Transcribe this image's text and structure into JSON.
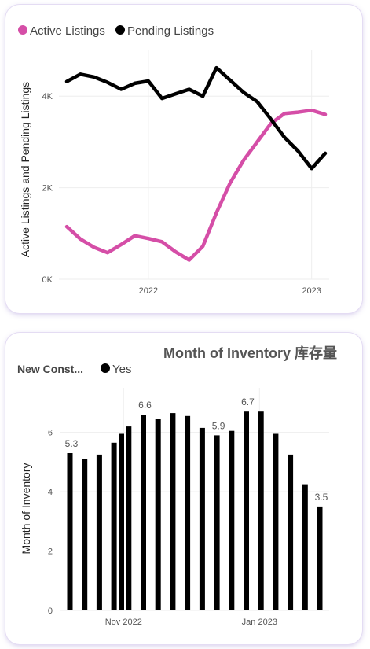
{
  "chart_data": [
    {
      "type": "line",
      "title": "",
      "xlabel": "",
      "ylabel": "Active Listings and Pending Listings",
      "x_ticks": [
        "2022",
        "2023"
      ],
      "y_ticks": [
        "0K",
        "2K",
        "4K"
      ],
      "ylim": [
        0,
        5000
      ],
      "grid": true,
      "legend_position": "top-left",
      "x": [
        "2021-07",
        "2021-08",
        "2021-09",
        "2021-10",
        "2021-11",
        "2021-12",
        "2022-01",
        "2022-02",
        "2022-03",
        "2022-04",
        "2022-05",
        "2022-06",
        "2022-07",
        "2022-08",
        "2022-09",
        "2022-10",
        "2022-11",
        "2022-12",
        "2023-01",
        "2023-02"
      ],
      "series": [
        {
          "name": "Active Listings",
          "color": "#d54ea7",
          "values": [
            1150,
            880,
            700,
            580,
            760,
            950,
            890,
            820,
            600,
            420,
            720,
            1450,
            2100,
            2600,
            3000,
            3400,
            3620,
            3650,
            3690,
            3600
          ]
        },
        {
          "name": "Pending Listings",
          "color": "#000000",
          "values": [
            4320,
            4480,
            4420,
            4300,
            4150,
            4280,
            4330,
            3950,
            4050,
            4150,
            4000,
            4620,
            4350,
            4080,
            3880,
            3500,
            3100,
            2800,
            2420,
            2750
          ]
        }
      ]
    },
    {
      "type": "bar",
      "title": "Month of Inventory 库存量",
      "xlabel": "",
      "ylabel": "Month of Inventory",
      "legend_title": "New Const...",
      "legend_entries": [
        "Yes"
      ],
      "x_ticks": [
        "Nov 2022",
        "Jan 2023"
      ],
      "y_ticks": [
        "0",
        "2",
        "4",
        "6"
      ],
      "ylim": [
        0,
        7.5
      ],
      "grid": true,
      "legend_position": "top-left",
      "series": [
        {
          "name": "Yes",
          "color": "#000000",
          "values": [
            5.3,
            5.1,
            5.25,
            5.65,
            5.95,
            6.2,
            6.6,
            6.45,
            6.65,
            6.55,
            6.15,
            5.9,
            6.05,
            6.7,
            6.7,
            5.95,
            5.25,
            4.25,
            3.5
          ],
          "data_labels": [
            "5.3",
            "",
            "",
            "",
            "",
            "",
            "6.6",
            "",
            "",
            "",
            "",
            "5.9",
            "",
            "6.7",
            "",
            "",
            "",
            "",
            "3.5"
          ]
        }
      ]
    }
  ]
}
